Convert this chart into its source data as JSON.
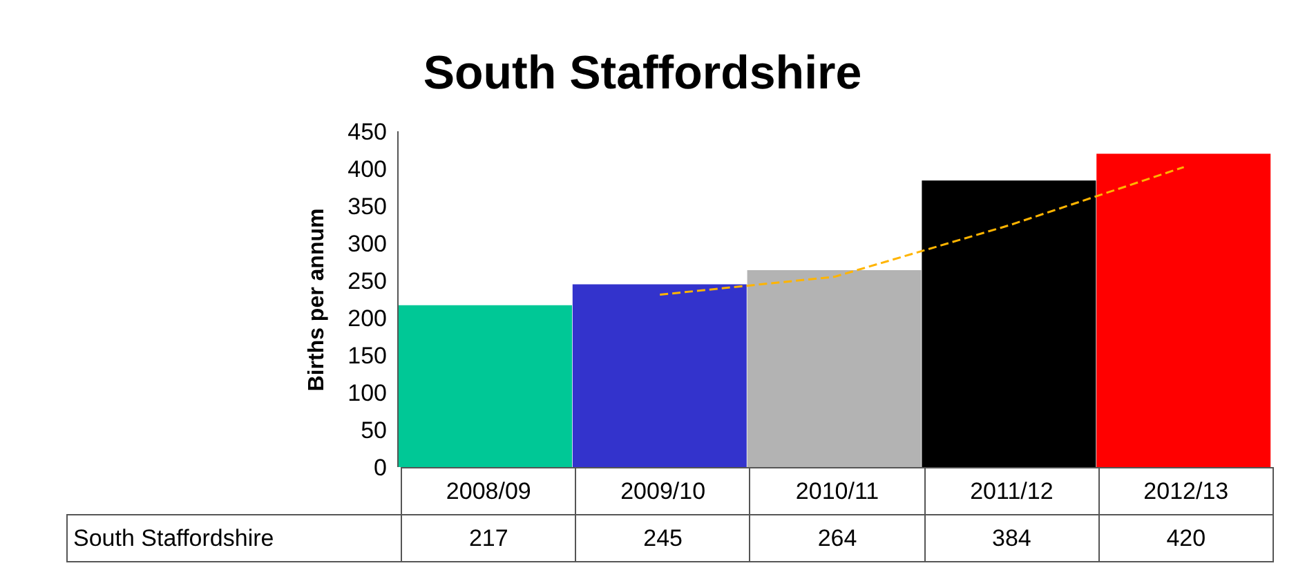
{
  "chart_data": {
    "type": "bar",
    "title": "South Staffordshire",
    "ylabel": "Births per annum",
    "categories": [
      "2008/09",
      "2009/10",
      "2010/11",
      "2011/12",
      "2012/13"
    ],
    "series": [
      {
        "name": "South Staffordshire",
        "colors": [
          "#00c896",
          "#3333cc",
          "#b3b3b3",
          "#000000",
          "#ff0000"
        ],
        "values": [
          217,
          245,
          264,
          384,
          420
        ],
        "value_labels": [
          "217",
          "245",
          "264",
          "384",
          "420"
        ]
      },
      {
        "type": "line",
        "color": "#ffb400",
        "line_style": "dashed",
        "x": [
          "2009/10",
          "2010/11",
          "2011/12",
          "2012/13"
        ],
        "values": [
          231,
          255,
          324,
          402
        ]
      }
    ],
    "ylim": [
      0,
      450
    ],
    "yticks": [
      0,
      50,
      100,
      150,
      200,
      250,
      300,
      350,
      400,
      450
    ],
    "tick_labels": "y"
  }
}
